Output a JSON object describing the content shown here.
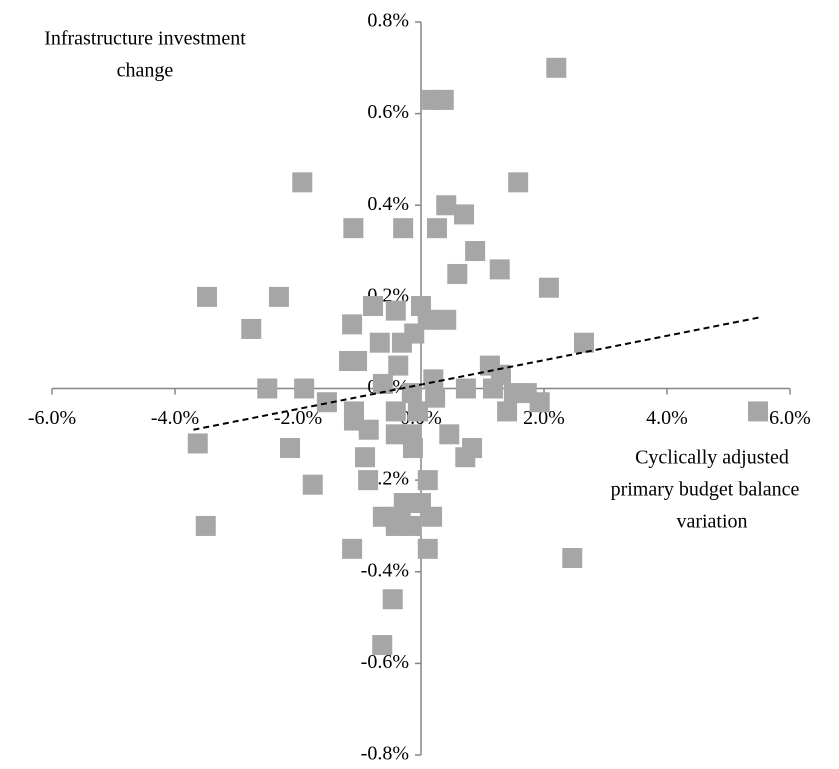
{
  "chart_data": {
    "type": "scatter",
    "y_label": [
      "Infrastructure investment",
      "change"
    ],
    "x_label": [
      "Cyclically adjusted",
      "primary budget  balance",
      "variation"
    ],
    "xlim": [
      -6,
      6
    ],
    "ylim": [
      -0.8,
      0.8
    ],
    "xticks": [
      {
        "value": -6,
        "label": "-6.0%"
      },
      {
        "value": -4,
        "label": "-4.0%"
      },
      {
        "value": -2,
        "label": "-2.0%"
      },
      {
        "value": 0,
        "label": "0.0%"
      },
      {
        "value": 2,
        "label": "2.0%"
      },
      {
        "value": 4,
        "label": "4.0%"
      },
      {
        "value": 6,
        "label": "6.0%"
      }
    ],
    "yticks": [
      {
        "value": -0.8,
        "label": "-0.8%"
      },
      {
        "value": -0.6,
        "label": "-0.6%"
      },
      {
        "value": -0.4,
        "label": "-0.4%"
      },
      {
        "value": -0.2,
        "label": "-0.2%"
      },
      {
        "value": 0,
        "label": "0.0%"
      },
      {
        "value": 0.2,
        "label": "0.2%"
      },
      {
        "value": 0.4,
        "label": "0.4%"
      },
      {
        "value": 0.6,
        "label": "0.6%"
      },
      {
        "value": 0.8,
        "label": "0.8%"
      }
    ],
    "color": "#a6a6a6",
    "x": [
      2.2,
      0.18,
      0.37,
      1.58,
      -1.93,
      0.41,
      0.7,
      -1.1,
      -0.29,
      0.26,
      0.88,
      1.28,
      0.59,
      2.08,
      -3.48,
      -2.31,
      0,
      -0.41,
      -0.78,
      0.11,
      0.41,
      -2.76,
      -1.12,
      -0.11,
      -0.67,
      -0.31,
      2.65,
      -1.17,
      -1.04,
      -0.37,
      1.12,
      1.3,
      0.2,
      -2.5,
      -1.9,
      -0.62,
      0.73,
      1.17,
      1.72,
      1.51,
      0.23,
      -0.15,
      1.93,
      -1.53,
      1.4,
      5.48,
      -1.09,
      -0.41,
      -0.05,
      -1.09,
      -0.85,
      -0.41,
      -0.15,
      0.46,
      -3.63,
      -2.13,
      -0.13,
      0.83,
      0.72,
      -0.91,
      -1.76,
      0.11,
      -0.86,
      -0.28,
      0,
      -0.62,
      0.18,
      -0.33,
      -3.5,
      -0.41,
      -0.15,
      -1.12,
      0.11,
      2.46,
      -0.46,
      -0.63
    ],
    "y": [
      0.7,
      0.63,
      0.63,
      0.45,
      0.45,
      0.4,
      0.38,
      0.35,
      0.35,
      0.35,
      0.3,
      0.26,
      0.25,
      0.22,
      0.2,
      0.2,
      0.18,
      0.17,
      0.18,
      0.15,
      0.15,
      0.13,
      0.14,
      0.12,
      0.1,
      0.1,
      0.1,
      0.06,
      0.06,
      0.05,
      0.05,
      0.03,
      0.02,
      0,
      0,
      0.01,
      0,
      0,
      -0.01,
      -0.01,
      -0.02,
      -0.01,
      -0.03,
      -0.03,
      -0.05,
      -0.05,
      -0.05,
      -0.05,
      -0.05,
      -0.07,
      -0.09,
      -0.1,
      -0.1,
      -0.1,
      -0.12,
      -0.13,
      -0.13,
      -0.13,
      -0.15,
      -0.15,
      -0.21,
      -0.2,
      -0.2,
      -0.25,
      -0.25,
      -0.28,
      -0.28,
      -0.28,
      -0.3,
      -0.3,
      -0.3,
      -0.35,
      -0.35,
      -0.37,
      -0.46,
      -0.56
    ],
    "trendline": {
      "x": [
        -3.7,
        5.5
      ],
      "y": [
        -0.09,
        0.155
      ]
    }
  }
}
